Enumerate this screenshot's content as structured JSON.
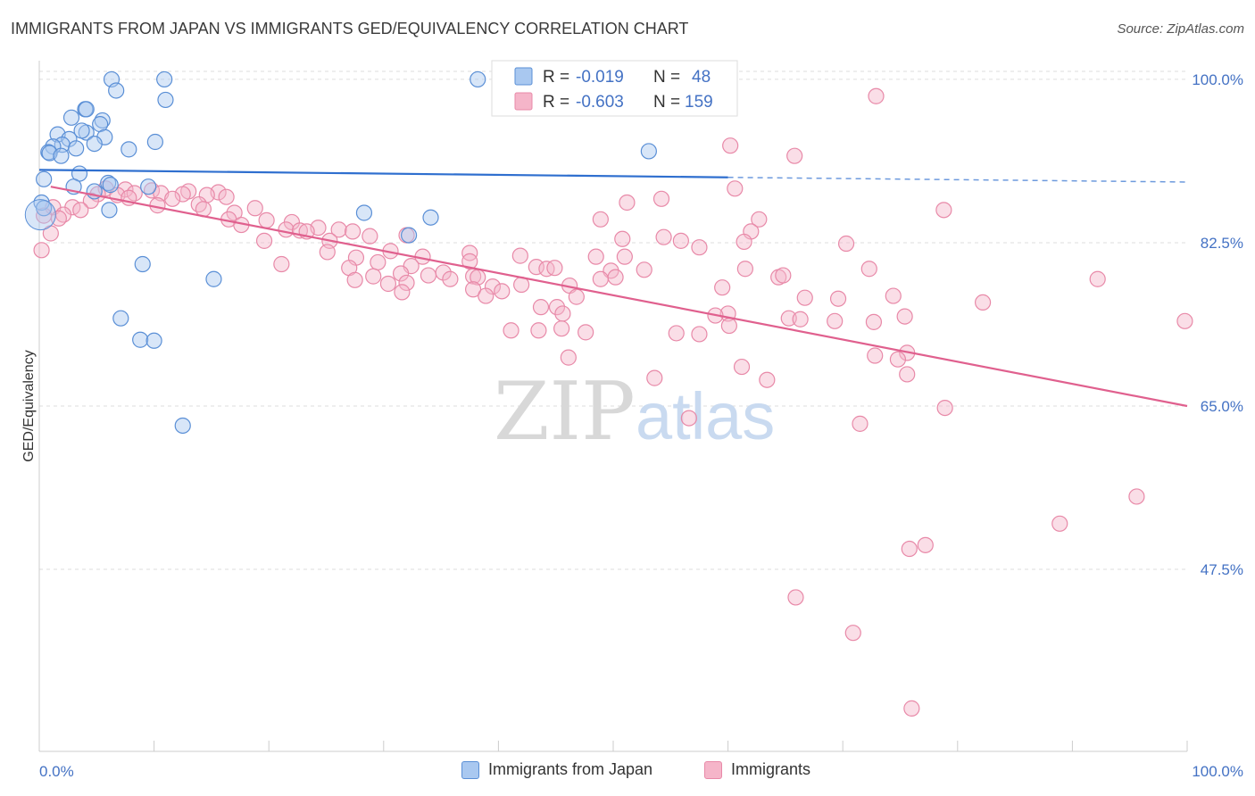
{
  "header": {
    "title": "IMMIGRANTS FROM JAPAN VS IMMIGRANTS GED/EQUIVALENCY CORRELATION CHART",
    "source": "Source: ZipAtlas.com"
  },
  "watermark": {
    "zip": "ZIP",
    "atlas": "atlas"
  },
  "colors": {
    "blue_fill": "#a9c8f0",
    "blue_stroke": "#5a8fd6",
    "blue_line": "#2f6fcf",
    "pink_fill": "#f5b5c9",
    "pink_stroke": "#e889a8",
    "pink_line": "#e0608e",
    "tick_label": "#4472c4",
    "grid": "#dddddd"
  },
  "legend": {
    "r_label": "R =",
    "n_label": "N =",
    "rows": [
      {
        "r": "-0.019",
        "n": "48"
      },
      {
        "r": "-0.603",
        "n": "159"
      }
    ]
  },
  "chart_data": {
    "type": "scatter",
    "title": "IMMIGRANTS FROM JAPAN VS IMMIGRANTS GED/EQUIVALENCY CORRELATION CHART",
    "ylabel": "GED/Equivalency",
    "xlabel": "",
    "xlim": [
      0,
      100
    ],
    "ylim": [
      28,
      102
    ],
    "x_ticks": [
      "0.0%",
      "100.0%"
    ],
    "y_ticks": [
      {
        "value": 100,
        "label": "100.0%"
      },
      {
        "value": 82.5,
        "label": "82.5%"
      },
      {
        "value": 65,
        "label": "65.0%"
      },
      {
        "value": 47.5,
        "label": "47.5%"
      }
    ],
    "grid": true,
    "legend_position": "top-center",
    "series": [
      {
        "name": "Immigrants from Japan",
        "r": -0.019,
        "n": 48,
        "trend": {
          "x0": 0,
          "y0": 90.3,
          "x1": 60,
          "y1": 89.5,
          "dash_to_x": 100,
          "dash_to_y": 89.0
        },
        "points": [
          [
            6.3,
            100
          ],
          [
            10.9,
            100
          ],
          [
            38.2,
            100
          ],
          [
            42.5,
            100
          ],
          [
            6.7,
            98.8
          ],
          [
            11.0,
            97.8
          ],
          [
            4.0,
            96.8
          ],
          [
            4.1,
            96.8
          ],
          [
            2.8,
            95.9
          ],
          [
            5.5,
            95.6
          ],
          [
            5.3,
            95.2
          ],
          [
            1.6,
            94.1
          ],
          [
            4.1,
            94.3
          ],
          [
            3.7,
            94.5
          ],
          [
            5.7,
            93.8
          ],
          [
            2.6,
            93.6
          ],
          [
            10.1,
            93.3
          ],
          [
            4.8,
            93.1
          ],
          [
            2.0,
            93.0
          ],
          [
            1.2,
            92.8
          ],
          [
            3.2,
            92.6
          ],
          [
            7.8,
            92.5
          ],
          [
            0.8,
            92.2
          ],
          [
            0.9,
            92.1
          ],
          [
            53.1,
            92.3
          ],
          [
            1.9,
            91.8
          ],
          [
            3.5,
            89.9
          ],
          [
            0.4,
            89.3
          ],
          [
            6.0,
            88.9
          ],
          [
            6.2,
            88.7
          ],
          [
            9.5,
            88.5
          ],
          [
            3.0,
            88.5
          ],
          [
            4.8,
            88.0
          ],
          [
            0.2,
            86.8
          ],
          [
            0.4,
            86.2
          ],
          [
            6.1,
            86.0
          ],
          [
            28.3,
            85.7
          ],
          [
            34.1,
            85.2
          ],
          [
            32.2,
            83.3
          ],
          [
            9.0,
            80.2
          ],
          [
            15.2,
            78.6
          ],
          [
            7.1,
            74.4
          ],
          [
            8.8,
            72.1
          ],
          [
            10.0,
            72.0
          ],
          [
            12.5,
            62.9
          ]
        ]
      },
      {
        "name": "Immigrants",
        "r": -0.603,
        "n": 159,
        "trend": {
          "x0": 1,
          "y0": 88.5,
          "x1": 100,
          "y1": 65.0
        },
        "points": [
          [
            72.9,
            98.2
          ],
          [
            60.2,
            92.9
          ],
          [
            65.8,
            91.8
          ],
          [
            60.6,
            88.3
          ],
          [
            5.8,
            88.3
          ],
          [
            7.5,
            88.2
          ],
          [
            9.8,
            88.1
          ],
          [
            13.0,
            88.0
          ],
          [
            15.6,
            87.9
          ],
          [
            8.3,
            87.8
          ],
          [
            10.6,
            87.8
          ],
          [
            5.1,
            87.7
          ],
          [
            12.5,
            87.7
          ],
          [
            6.8,
            87.6
          ],
          [
            14.6,
            87.6
          ],
          [
            16.3,
            87.4
          ],
          [
            7.8,
            87.3
          ],
          [
            11.6,
            87.2
          ],
          [
            54.2,
            87.2
          ],
          [
            4.5,
            87.0
          ],
          [
            51.2,
            86.8
          ],
          [
            13.9,
            86.6
          ],
          [
            10.3,
            86.5
          ],
          [
            1.2,
            86.3
          ],
          [
            2.9,
            86.3
          ],
          [
            18.8,
            86.2
          ],
          [
            14.3,
            86.1
          ],
          [
            3.6,
            86.0
          ],
          [
            78.8,
            86.0
          ],
          [
            17.0,
            85.7
          ],
          [
            2.1,
            85.5
          ],
          [
            0.4,
            85.4
          ],
          [
            1.7,
            85.1
          ],
          [
            16.5,
            85.0
          ],
          [
            48.9,
            85.0
          ],
          [
            62.7,
            85.0
          ],
          [
            19.8,
            84.9
          ],
          [
            22.0,
            84.7
          ],
          [
            17.6,
            84.4
          ],
          [
            24.3,
            84.1
          ],
          [
            21.5,
            83.9
          ],
          [
            26.1,
            83.9
          ],
          [
            22.7,
            83.8
          ],
          [
            23.3,
            83.7
          ],
          [
            27.3,
            83.7
          ],
          [
            62.0,
            83.7
          ],
          [
            1.0,
            83.5
          ],
          [
            32.0,
            83.3
          ],
          [
            28.8,
            83.2
          ],
          [
            54.4,
            83.1
          ],
          [
            50.8,
            82.9
          ],
          [
            19.6,
            82.7
          ],
          [
            25.3,
            82.7
          ],
          [
            55.9,
            82.7
          ],
          [
            61.4,
            82.6
          ],
          [
            70.3,
            82.4
          ],
          [
            57.5,
            82.0
          ],
          [
            0.2,
            81.7
          ],
          [
            30.6,
            81.6
          ],
          [
            25.1,
            81.5
          ],
          [
            37.5,
            81.4
          ],
          [
            41.9,
            81.1
          ],
          [
            33.4,
            81.0
          ],
          [
            48.5,
            81.0
          ],
          [
            27.6,
            80.9
          ],
          [
            51.0,
            81.0
          ],
          [
            37.5,
            80.5
          ],
          [
            32.4,
            80.0
          ],
          [
            21.1,
            80.2
          ],
          [
            29.5,
            80.4
          ],
          [
            27.0,
            79.8
          ],
          [
            43.3,
            79.9
          ],
          [
            44.2,
            79.7
          ],
          [
            44.9,
            79.8
          ],
          [
            61.5,
            79.7
          ],
          [
            52.7,
            79.6
          ],
          [
            72.3,
            79.7
          ],
          [
            49.8,
            79.5
          ],
          [
            35.2,
            79.3
          ],
          [
            31.5,
            79.2
          ],
          [
            33.9,
            79.0
          ],
          [
            37.8,
            78.9
          ],
          [
            29.1,
            78.9
          ],
          [
            38.2,
            78.8
          ],
          [
            50.2,
            78.8
          ],
          [
            48.9,
            78.6
          ],
          [
            64.4,
            78.8
          ],
          [
            64.8,
            79.0
          ],
          [
            35.8,
            78.6
          ],
          [
            27.5,
            78.5
          ],
          [
            32.0,
            78.2
          ],
          [
            30.4,
            78.1
          ],
          [
            42.0,
            78.0
          ],
          [
            46.2,
            77.9
          ],
          [
            39.5,
            77.8
          ],
          [
            59.5,
            77.7
          ],
          [
            92.2,
            78.6
          ],
          [
            37.8,
            77.5
          ],
          [
            40.3,
            77.3
          ],
          [
            31.6,
            77.2
          ],
          [
            38.9,
            76.8
          ],
          [
            46.8,
            76.7
          ],
          [
            74.4,
            76.8
          ],
          [
            66.7,
            76.6
          ],
          [
            69.6,
            76.5
          ],
          [
            82.2,
            76.1
          ],
          [
            43.7,
            75.6
          ],
          [
            45.1,
            75.6
          ],
          [
            45.6,
            74.9
          ],
          [
            60.0,
            74.9
          ],
          [
            58.9,
            74.7
          ],
          [
            75.4,
            74.6
          ],
          [
            65.3,
            74.4
          ],
          [
            66.3,
            74.3
          ],
          [
            69.3,
            74.1
          ],
          [
            72.7,
            74.0
          ],
          [
            99.8,
            74.1
          ],
          [
            60.1,
            73.6
          ],
          [
            41.1,
            73.1
          ],
          [
            43.5,
            73.1
          ],
          [
            45.5,
            73.3
          ],
          [
            47.6,
            72.9
          ],
          [
            55.5,
            72.8
          ],
          [
            57.5,
            72.7
          ],
          [
            75.6,
            70.7
          ],
          [
            72.8,
            70.4
          ],
          [
            74.8,
            70.0
          ],
          [
            46.1,
            70.2
          ],
          [
            61.2,
            69.2
          ],
          [
            75.6,
            68.4
          ],
          [
            53.6,
            68.0
          ],
          [
            63.4,
            67.8
          ],
          [
            78.9,
            64.8
          ],
          [
            71.5,
            63.1
          ],
          [
            56.6,
            63.7
          ],
          [
            95.6,
            55.3
          ],
          [
            88.9,
            52.4
          ],
          [
            77.2,
            50.1
          ],
          [
            75.8,
            49.7
          ],
          [
            65.9,
            44.5
          ],
          [
            70.9,
            40.7
          ],
          [
            76.0,
            32.6
          ]
        ]
      }
    ]
  }
}
